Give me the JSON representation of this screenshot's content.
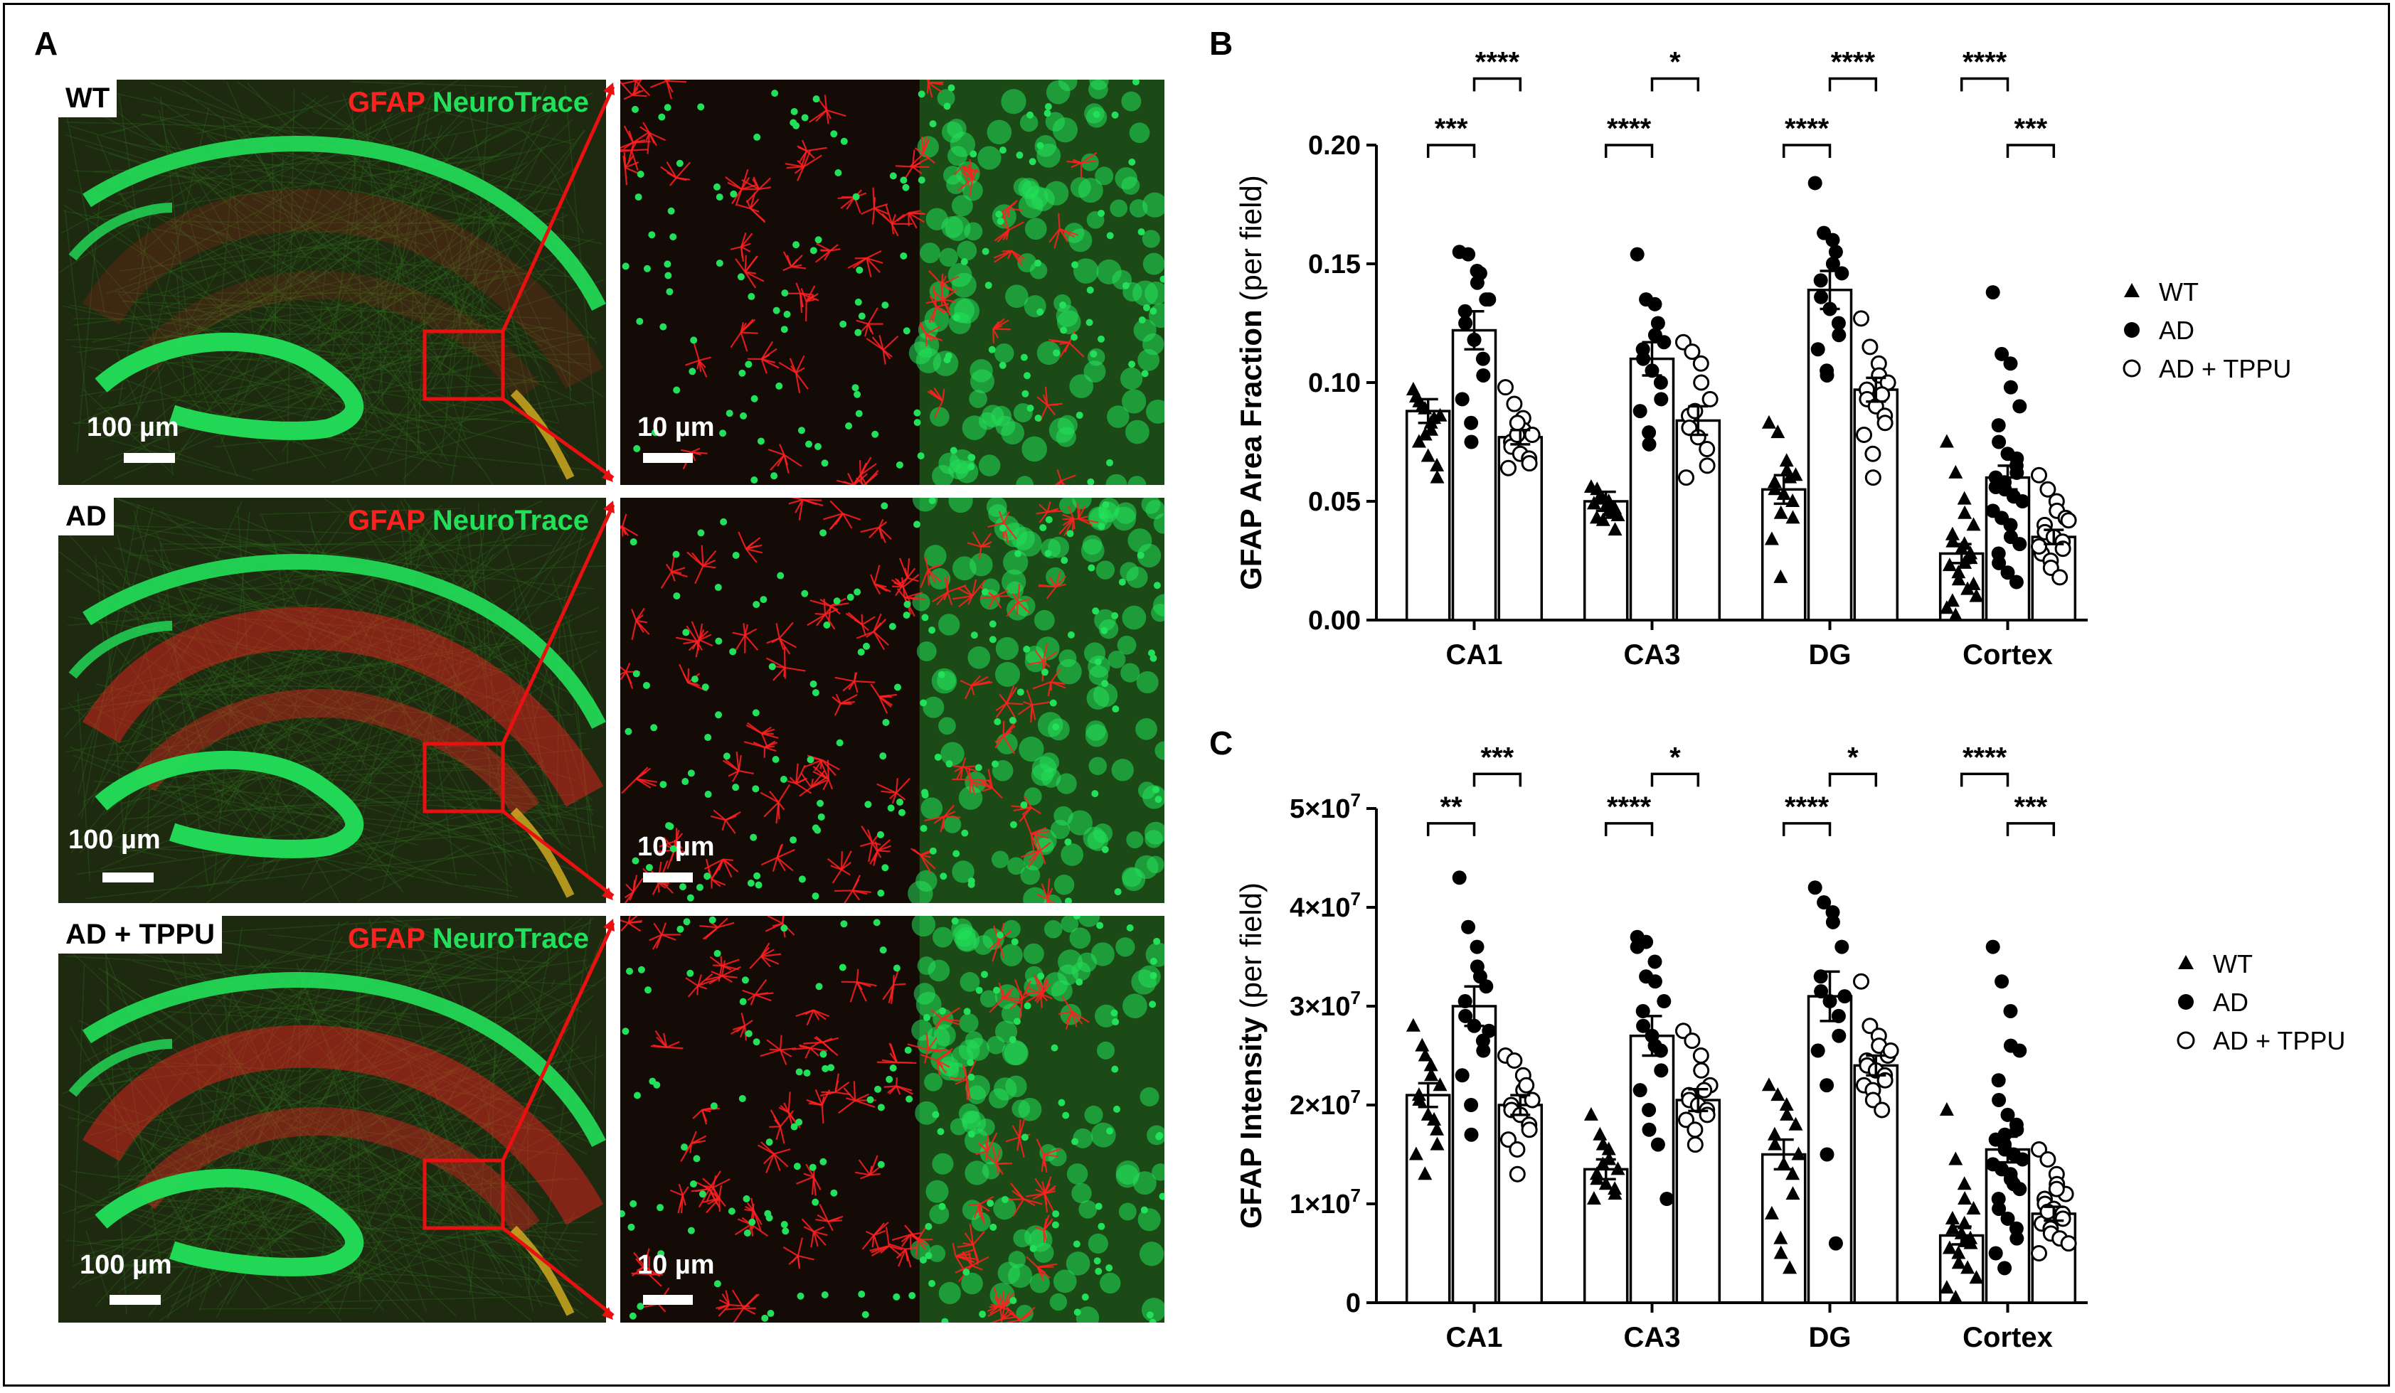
{
  "figure": {
    "panel_labels": {
      "a": "A",
      "b": "B",
      "c": "C"
    },
    "micrographs": [
      {
        "genotype": "WT",
        "stain_red": "GFAP",
        "stain_green": "NeuroTrace",
        "scale_overview": "100 µm",
        "scale_zoom": "10 µm",
        "condition": "WT"
      },
      {
        "genotype": "AD",
        "stain_red": "GFAP",
        "stain_green": "NeuroTrace",
        "scale_overview": "100 µm",
        "scale_zoom": "10 µm",
        "condition": "AD"
      },
      {
        "genotype": "AD + TPPU",
        "stain_red": "GFAP",
        "stain_green": "NeuroTrace",
        "scale_overview": "100 µm",
        "scale_zoom": "10 µm",
        "condition": "AD + TPPU"
      }
    ],
    "colors": {
      "gfap_red": "#ff2020",
      "neurotrace_green": "#22e05a",
      "tissue_dark": "#1a1208",
      "callout": "#e81010"
    }
  },
  "chart_data": [
    {
      "panel": "B",
      "type": "bar",
      "ylabel_main": "GFAP Area Fraction",
      "ylabel_unit": "(per field)",
      "ylim": [
        0,
        0.2
      ],
      "yticks": [
        "0.00",
        "0.05",
        "0.10",
        "0.15",
        "0.20"
      ],
      "ytick_values": [
        0,
        0.05,
        0.1,
        0.15,
        0.2
      ],
      "categories": [
        "CA1",
        "CA3",
        "DG",
        "Cortex"
      ],
      "legend": [
        "WT",
        "AD",
        "AD + TPPU"
      ],
      "legend_position": "right",
      "series": [
        {
          "name": "WT",
          "marker": "triangle",
          "means": [
            0.088,
            0.05,
            0.055,
            0.028
          ],
          "sem": [
            0.005,
            0.004,
            0.006,
            0.004
          ],
          "points": [
            [
              0.097,
              0.09,
              0.083,
              0.08,
              0.086,
              0.075,
              0.092,
              0.069,
              0.065,
              0.06,
              0.094,
              0.089,
              0.078,
              0.085
            ],
            [
              0.056,
              0.052,
              0.05,
              0.046,
              0.044,
              0.043,
              0.055,
              0.048,
              0.047,
              0.038,
              0.049,
              0.051,
              0.042,
              0.045
            ],
            [
              0.083,
              0.079,
              0.067,
              0.063,
              0.061,
              0.058,
              0.055,
              0.053,
              0.05,
              0.043,
              0.034,
              0.018,
              0.045,
              0.06
            ],
            [
              0.075,
              0.062,
              0.051,
              0.045,
              0.04,
              0.036,
              0.033,
              0.03,
              0.028,
              0.026,
              0.023,
              0.02,
              0.017,
              0.013,
              0.01,
              0.005,
              0.002,
              0.032,
              0.024,
              0.015,
              0.008
            ]
          ]
        },
        {
          "name": "AD",
          "marker": "circle",
          "means": [
            0.122,
            0.11,
            0.139,
            0.06
          ],
          "sem": [
            0.008,
            0.007,
            0.008,
            0.005
          ],
          "points": [
            [
              0.155,
              0.154,
              0.147,
              0.142,
              0.135,
              0.13,
              0.125,
              0.118,
              0.11,
              0.103,
              0.093,
              0.083,
              0.075,
              0.146,
              0.135
            ],
            [
              0.154,
              0.135,
              0.133,
              0.12,
              0.117,
              0.114,
              0.11,
              0.105,
              0.1,
              0.093,
              0.088,
              0.079,
              0.074,
              0.125
            ],
            [
              0.184,
              0.163,
              0.16,
              0.15,
              0.146,
              0.143,
              0.136,
              0.131,
              0.125,
              0.12,
              0.114,
              0.105,
              0.103,
              0.155
            ],
            [
              0.138,
              0.112,
              0.108,
              0.098,
              0.09,
              0.082,
              0.075,
              0.07,
              0.065,
              0.062,
              0.06,
              0.058,
              0.055,
              0.052,
              0.05,
              0.046,
              0.043,
              0.04,
              0.035,
              0.032,
              0.028,
              0.024,
              0.02,
              0.016,
              0.068,
              0.056
            ]
          ]
        },
        {
          "name": "AD + TPPU",
          "marker": "open-circle",
          "means": [
            0.077,
            0.084,
            0.097,
            0.035
          ],
          "sem": [
            0.003,
            0.006,
            0.005,
            0.003
          ],
          "points": [
            [
              0.098,
              0.091,
              0.085,
              0.08,
              0.078,
              0.075,
              0.073,
              0.07,
              0.068,
              0.066,
              0.064,
              0.078,
              0.083
            ],
            [
              0.117,
              0.113,
              0.108,
              0.1,
              0.093,
              0.086,
              0.081,
              0.077,
              0.072,
              0.065,
              0.06,
              0.088
            ],
            [
              0.127,
              0.115,
              0.108,
              0.103,
              0.1,
              0.097,
              0.093,
              0.09,
              0.086,
              0.083,
              0.078,
              0.07,
              0.06,
              0.095
            ],
            [
              0.061,
              0.055,
              0.05,
              0.046,
              0.043,
              0.04,
              0.037,
              0.035,
              0.033,
              0.03,
              0.028,
              0.025,
              0.022,
              0.018,
              0.042,
              0.031
            ]
          ]
        }
      ],
      "significance": [
        {
          "category": "CA1",
          "from": 0,
          "to": 1,
          "label": "***",
          "level": 0.2
        },
        {
          "category": "CA1",
          "from": 1,
          "to": 2,
          "label": "****",
          "level": 0.228
        },
        {
          "category": "CA3",
          "from": 0,
          "to": 1,
          "label": "****",
          "level": 0.2
        },
        {
          "category": "CA3",
          "from": 1,
          "to": 2,
          "label": "*",
          "level": 0.228
        },
        {
          "category": "DG",
          "from": 0,
          "to": 1,
          "label": "****",
          "level": 0.2
        },
        {
          "category": "DG",
          "from": 1,
          "to": 2,
          "label": "****",
          "level": 0.228
        },
        {
          "category": "Cortex",
          "from": 0,
          "to": 1,
          "label": "****",
          "level": 0.228
        },
        {
          "category": "Cortex",
          "from": 1,
          "to": 2,
          "label": "***",
          "level": 0.2
        }
      ]
    },
    {
      "panel": "C",
      "type": "bar",
      "ylabel_main": "GFAP Intensity",
      "ylabel_unit": "(per field)",
      "ylim": [
        0,
        50000000
      ],
      "yticks": [
        "0",
        "1×10",
        "2×10",
        "3×10",
        "4×10",
        "5×10"
      ],
      "ytick_exponent": "7",
      "ytick_values": [
        0,
        10000000,
        20000000,
        30000000,
        40000000,
        50000000
      ],
      "categories": [
        "CA1",
        "CA3",
        "DG",
        "Cortex"
      ],
      "legend": [
        "WT",
        "AD",
        "AD + TPPU"
      ],
      "legend_position": "right",
      "series": [
        {
          "name": "WT",
          "marker": "triangle",
          "means": [
            21000000,
            13500000,
            15000000,
            6800000
          ],
          "sem": [
            1200000,
            1000000,
            1500000,
            900000
          ],
          "points": [
            [
              28000000,
              26000000,
              24000000,
              23000000,
              22000000,
              21000000,
              20500000,
              19000000,
              17500000,
              16000000,
              15000000,
              13000000,
              25000000,
              18500000
            ],
            [
              19000000,
              17000000,
              15500000,
              14500000,
              13500000,
              13000000,
              12500000,
              12000000,
              11500000,
              11000000,
              10500000,
              14000000,
              16000000
            ],
            [
              22000000,
              21000000,
              20000000,
              19000000,
              18000000,
              17000000,
              16000000,
              14000000,
              13000000,
              11000000,
              9000000,
              6500000,
              5000000,
              3500000,
              15000000
            ],
            [
              19500000,
              14500000,
              12000000,
              10500000,
              9500000,
              8500000,
              7500000,
              7000000,
              6500000,
              6000000,
              5500000,
              5000000,
              4000000,
              3500000,
              2500000,
              1500000,
              500000,
              8000000,
              6200000
            ]
          ]
        },
        {
          "name": "AD",
          "marker": "circle",
          "means": [
            30000000,
            27000000,
            31000000,
            15500000
          ],
          "sem": [
            2000000,
            2000000,
            2500000,
            1300000
          ],
          "points": [
            [
              43000000,
              38000000,
              36000000,
              34000000,
              32000000,
              30500000,
              29000000,
              28000000,
              26500000,
              25500000,
              23000000,
              20000000,
              17000000,
              33000000,
              27500000
            ],
            [
              37000000,
              36500000,
              34500000,
              32500000,
              30500000,
              29500000,
              28000000,
              27000000,
              25500000,
              23500000,
              21500000,
              19500000,
              17500000,
              16000000,
              10500000,
              36000000,
              33000000,
              26000000
            ],
            [
              42000000,
              40500000,
              39500000,
              38500000,
              36000000,
              33000000,
              31500000,
              30500000,
              29000000,
              27000000,
              25500000,
              22000000,
              15000000,
              6000000,
              31000000
            ],
            [
              36000000,
              32500000,
              29500000,
              26000000,
              25500000,
              22500000,
              20500000,
              19000000,
              18000000,
              17500000,
              16500000,
              16000000,
              15500000,
              15000000,
              14500000,
              14000000,
              13500000,
              13000000,
              12500000,
              11500000,
              10500000,
              9500000,
              8500000,
              7500000,
              6500000,
              5000000,
              3500000,
              17000000,
              12000000
            ]
          ]
        },
        {
          "name": "AD + TPPU",
          "marker": "open-circle",
          "means": [
            20000000,
            20500000,
            24000000,
            9000000
          ],
          "sem": [
            1000000,
            1100000,
            1000000,
            700000
          ],
          "points": [
            [
              25000000,
              24500000,
              23000000,
              21500000,
              20500000,
              20000000,
              19500000,
              19000000,
              18000000,
              17500000,
              16500000,
              15500000,
              13000000,
              22000000
            ],
            [
              27500000,
              26500000,
              25000000,
              23500000,
              22000000,
              21000000,
              20500000,
              20000000,
              19500000,
              19000000,
              18500000,
              17500000,
              16000000,
              21500000
            ],
            [
              32500000,
              28000000,
              27000000,
              26000000,
              25000000,
              24500000,
              24000000,
              23500000,
              23000000,
              22500000,
              22000000,
              21500000,
              20500000,
              19500000,
              25500000
            ],
            [
              15500000,
              14500000,
              13000000,
              12000000,
              11000000,
              10500000,
              10000000,
              9500000,
              9000000,
              8500000,
              8000000,
              7500000,
              7000000,
              6500000,
              6000000,
              5000000,
              9200000,
              11500000
            ]
          ]
        }
      ],
      "significance": [
        {
          "category": "CA1",
          "from": 0,
          "to": 1,
          "label": "**",
          "level": 48500000
        },
        {
          "category": "CA1",
          "from": 1,
          "to": 2,
          "label": "***",
          "level": 53500000
        },
        {
          "category": "CA3",
          "from": 0,
          "to": 1,
          "label": "****",
          "level": 48500000
        },
        {
          "category": "CA3",
          "from": 1,
          "to": 2,
          "label": "*",
          "level": 53500000
        },
        {
          "category": "DG",
          "from": 0,
          "to": 1,
          "label": "****",
          "level": 48500000
        },
        {
          "category": "DG",
          "from": 1,
          "to": 2,
          "label": "*",
          "level": 53500000
        },
        {
          "category": "Cortex",
          "from": 0,
          "to": 1,
          "label": "****",
          "level": 53500000
        },
        {
          "category": "Cortex",
          "from": 1,
          "to": 2,
          "label": "***",
          "level": 48500000
        }
      ]
    }
  ]
}
